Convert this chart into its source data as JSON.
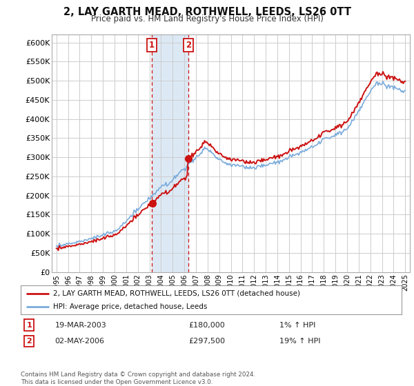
{
  "title": "2, LAY GARTH MEAD, ROTHWELL, LEEDS, LS26 0TT",
  "subtitle": "Price paid vs. HM Land Registry's House Price Index (HPI)",
  "ylim": [
    0,
    620000
  ],
  "yticks": [
    0,
    50000,
    100000,
    150000,
    200000,
    250000,
    300000,
    350000,
    400000,
    450000,
    500000,
    550000,
    600000
  ],
  "bg_color": "#ffffff",
  "plot_bg_color": "#ffffff",
  "grid_color": "#cccccc",
  "hpi_color": "#7aabdb",
  "price_color": "#cc1111",
  "purchase1_date": 2003.21,
  "purchase1_price": 180000,
  "purchase1_label": "1",
  "purchase2_date": 2006.37,
  "purchase2_price": 297500,
  "purchase2_label": "2",
  "legend_house": "2, LAY GARTH MEAD, ROTHWELL, LEEDS, LS26 0TT (detached house)",
  "legend_hpi": "HPI: Average price, detached house, Leeds",
  "footer": "Contains HM Land Registry data © Crown copyright and database right 2024.\nThis data is licensed under the Open Government Licence v3.0.",
  "table_row1_num": "1",
  "table_row1_date": "19-MAR-2003",
  "table_row1_price": "£180,000",
  "table_row1_hpi": "1% ↑ HPI",
  "table_row2_num": "2",
  "table_row2_date": "02-MAY-2006",
  "table_row2_price": "£297,500",
  "table_row2_hpi": "19% ↑ HPI",
  "highlight_color": "#dce9f5",
  "xstart": 1995,
  "xend": 2025
}
